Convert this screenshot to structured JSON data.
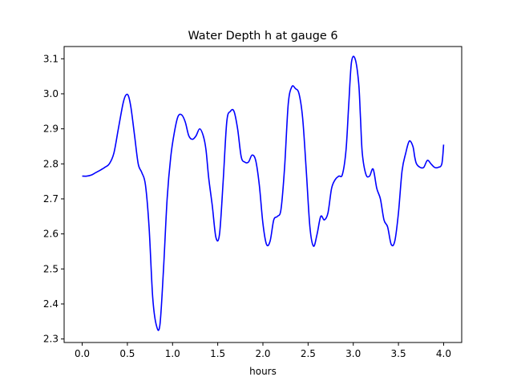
{
  "chart_data": {
    "type": "line",
    "title": "Water Depth h at gauge 6",
    "xlabel": "hours",
    "ylabel": "",
    "xlim": [
      -0.2,
      4.2
    ],
    "ylim": [
      2.29,
      3.135
    ],
    "x_ticks": [
      0.0,
      0.5,
      1.0,
      1.5,
      2.0,
      2.5,
      3.0,
      3.5,
      4.0
    ],
    "x_tick_labels": [
      "0.0",
      "0.5",
      "1.0",
      "1.5",
      "2.0",
      "2.5",
      "3.0",
      "3.5",
      "4.0"
    ],
    "y_ticks": [
      2.3,
      2.4,
      2.5,
      2.6,
      2.7,
      2.8,
      2.9,
      3.0,
      3.1
    ],
    "y_tick_labels": [
      "2.3",
      "2.4",
      "2.5",
      "2.6",
      "2.7",
      "2.8",
      "2.9",
      "3.0",
      "3.1"
    ],
    "grid": false,
    "series": [
      {
        "color": "#0000ff",
        "x": [
          0.0,
          0.05,
          0.1,
          0.15,
          0.2,
          0.25,
          0.3,
          0.35,
          0.4,
          0.45,
          0.48,
          0.51,
          0.54,
          0.58,
          0.62,
          0.66,
          0.7,
          0.74,
          0.78,
          0.82,
          0.86,
          0.9,
          0.94,
          0.98,
          1.02,
          1.06,
          1.1,
          1.14,
          1.18,
          1.22,
          1.26,
          1.3,
          1.34,
          1.37,
          1.4,
          1.44,
          1.48,
          1.52,
          1.56,
          1.6,
          1.64,
          1.68,
          1.72,
          1.76,
          1.8,
          1.84,
          1.88,
          1.92,
          1.96,
          2.0,
          2.04,
          2.08,
          2.12,
          2.16,
          2.2,
          2.24,
          2.28,
          2.32,
          2.36,
          2.4,
          2.44,
          2.48,
          2.52,
          2.56,
          2.6,
          2.64,
          2.68,
          2.72,
          2.76,
          2.8,
          2.84,
          2.88,
          2.92,
          2.95,
          2.98,
          3.02,
          3.06,
          3.08,
          3.1,
          3.14,
          3.18,
          3.22,
          3.26,
          3.3,
          3.34,
          3.38,
          3.42,
          3.46,
          3.5,
          3.54,
          3.58,
          3.62,
          3.66,
          3.68,
          3.7,
          3.74,
          3.78,
          3.82,
          3.86,
          3.9,
          3.94,
          3.98,
          4.0
        ],
        "y": [
          2.765,
          2.765,
          2.768,
          2.775,
          2.782,
          2.79,
          2.8,
          2.83,
          2.9,
          2.97,
          2.995,
          2.995,
          2.96,
          2.88,
          2.8,
          2.775,
          2.74,
          2.62,
          2.42,
          2.34,
          2.34,
          2.5,
          2.7,
          2.82,
          2.89,
          2.935,
          2.94,
          2.92,
          2.88,
          2.87,
          2.88,
          2.9,
          2.88,
          2.84,
          2.76,
          2.68,
          2.59,
          2.6,
          2.75,
          2.92,
          2.95,
          2.95,
          2.9,
          2.82,
          2.805,
          2.805,
          2.825,
          2.81,
          2.74,
          2.63,
          2.57,
          2.58,
          2.64,
          2.65,
          2.67,
          2.79,
          2.97,
          3.02,
          3.015,
          3.0,
          2.93,
          2.78,
          2.62,
          2.565,
          2.6,
          2.65,
          2.64,
          2.66,
          2.73,
          2.755,
          2.765,
          2.77,
          2.84,
          2.97,
          3.09,
          3.1,
          3.03,
          2.93,
          2.83,
          2.77,
          2.765,
          2.785,
          2.73,
          2.7,
          2.64,
          2.62,
          2.57,
          2.58,
          2.66,
          2.78,
          2.83,
          2.865,
          2.85,
          2.82,
          2.8,
          2.79,
          2.79,
          2.81,
          2.8,
          2.79,
          2.79,
          2.8,
          2.855
        ]
      }
    ]
  }
}
